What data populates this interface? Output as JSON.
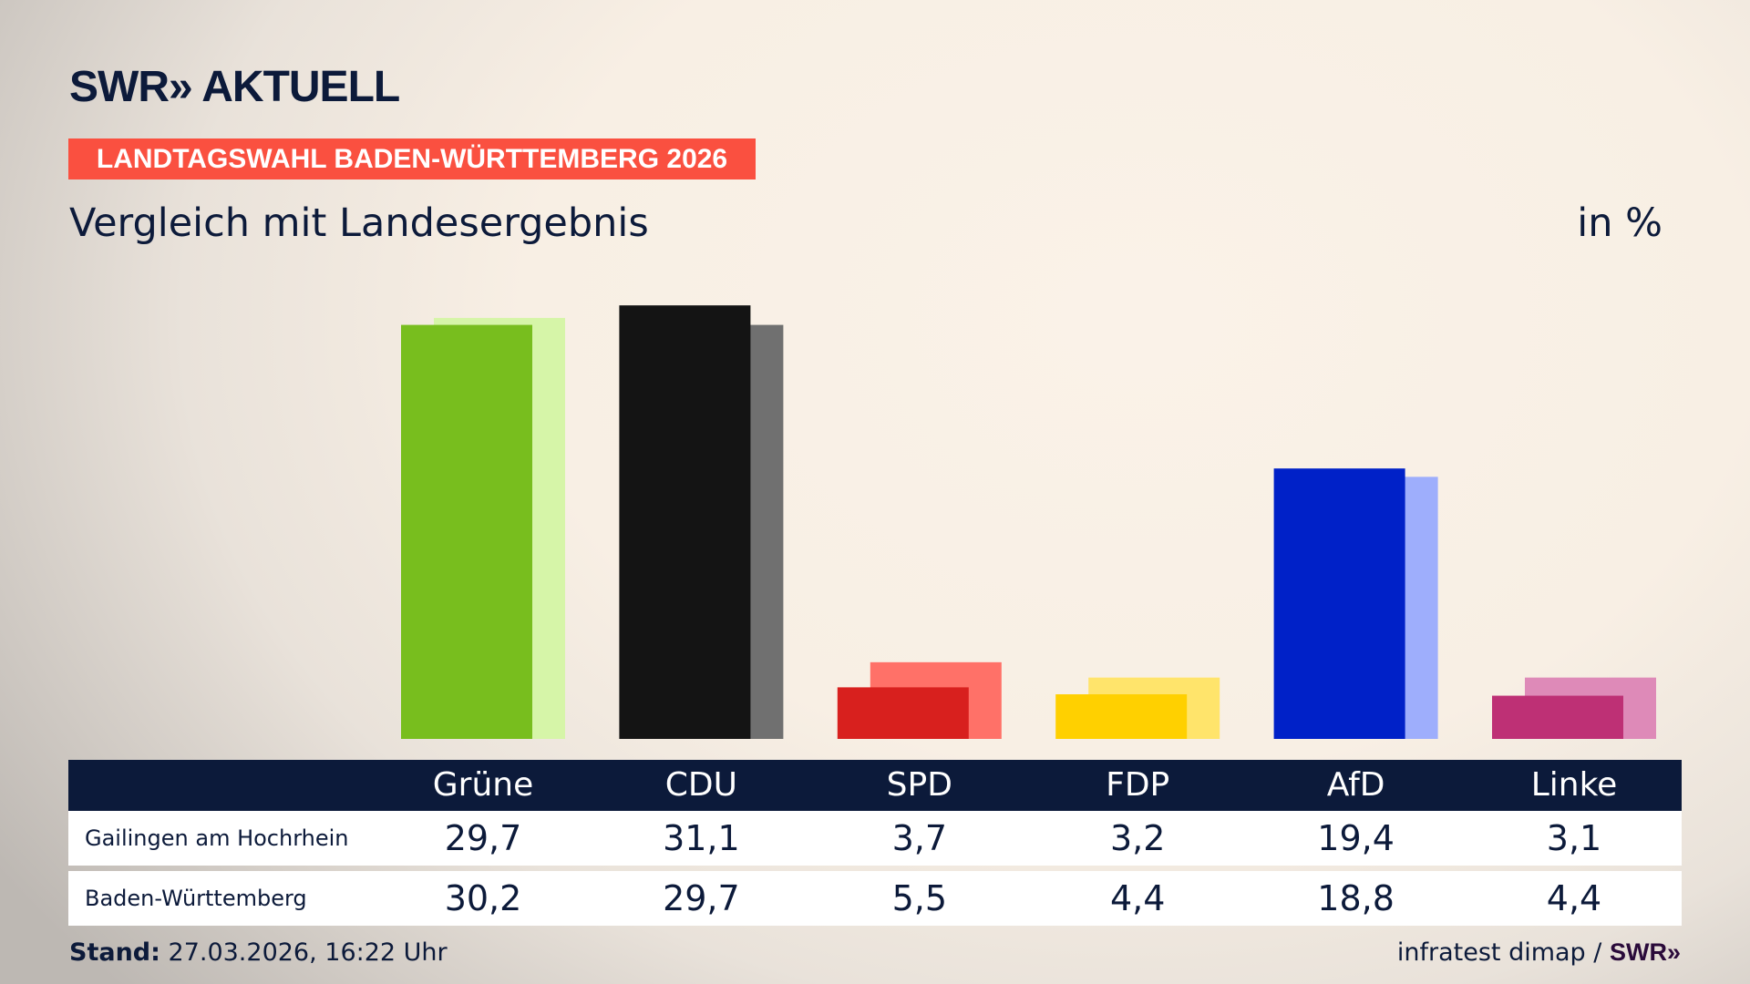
{
  "logo": "SWR» AKTUELL",
  "banner": "LANDTAGSWAHL BADEN-WÜRTTEMBERG 2026",
  "subtitle": "Vergleich mit Landesergebnis",
  "unit": "in %",
  "footer": {
    "stand_label": "Stand:",
    "stand_value": "27.03.2026, 16:22 Uhr",
    "source": "infratest dimap /",
    "source_logo": "SWR»"
  },
  "chart_data": {
    "type": "bar",
    "categories": [
      "Grüne",
      "CDU",
      "SPD",
      "FDP",
      "AfD",
      "Linke"
    ],
    "series": [
      {
        "name": "Gailingen am Hochrhein",
        "values": [
          29.7,
          31.1,
          3.7,
          3.2,
          19.4,
          3.1
        ],
        "labels": [
          "29,7",
          "31,1",
          "3,7",
          "3,2",
          "19,4",
          "3,1"
        ]
      },
      {
        "name": "Baden-Württemberg",
        "values": [
          30.2,
          29.7,
          5.5,
          4.4,
          18.8,
          4.4
        ],
        "labels": [
          "30,2",
          "29,7",
          "5,5",
          "4,4",
          "18,8",
          "4,4"
        ]
      }
    ],
    "colors": {
      "main": [
        "#78be1e",
        "#141414",
        "#d8201e",
        "#ffd000",
        "#0021c8",
        "#be3075"
      ],
      "comparison": [
        "#d6f5a8",
        "#707070",
        "#ff7168",
        "#ffe46b",
        "#9eaefc",
        "#de8ab8"
      ]
    },
    "ylim": [
      0,
      33
    ]
  }
}
